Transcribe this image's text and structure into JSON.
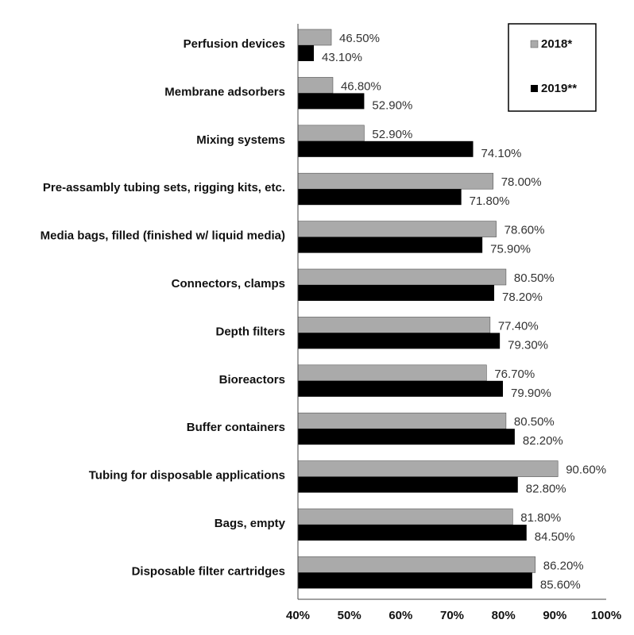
{
  "chart_data": {
    "type": "bar",
    "orientation": "horizontal",
    "categories": [
      "Perfusion devices",
      "Membrane adsorbers",
      "Mixing systems",
      "Pre-assambly tubing sets, rigging kits, etc.",
      "Media bags, filled (finished w/ liquid media)",
      "Connectors, clamps",
      "Depth filters",
      "Bioreactors",
      "Buffer containers",
      "Tubing for disposable applications",
      "Bags, empty",
      "Disposable filter cartridges"
    ],
    "series": [
      {
        "name": "2018*",
        "color": "#aaaaaa",
        "values": [
          46.5,
          46.8,
          52.9,
          78.0,
          78.6,
          80.5,
          77.4,
          76.7,
          80.5,
          90.6,
          81.8,
          86.2
        ],
        "labels": [
          "46.50%",
          "46.80%",
          "52.90%",
          "78.00%",
          "78.60%",
          "80.50%",
          "77.40%",
          "76.70%",
          "80.50%",
          "90.60%",
          "81.80%",
          "86.20%"
        ]
      },
      {
        "name": "2019**",
        "color": "#000000",
        "values": [
          43.1,
          52.9,
          74.1,
          71.8,
          75.9,
          78.2,
          79.3,
          79.9,
          82.2,
          82.8,
          84.5,
          85.6
        ],
        "labels": [
          "43.10%",
          "52.90%",
          "74.10%",
          "71.80%",
          "75.90%",
          "78.20%",
          "79.30%",
          "79.90%",
          "82.20%",
          "82.80%",
          "84.50%",
          "85.60%"
        ]
      }
    ],
    "xlim": [
      40,
      100
    ],
    "ticks": [
      "40%",
      "50%",
      "60%",
      "70%",
      "80%",
      "90%",
      "100%"
    ],
    "grid": false,
    "legend_position": "top-right"
  }
}
